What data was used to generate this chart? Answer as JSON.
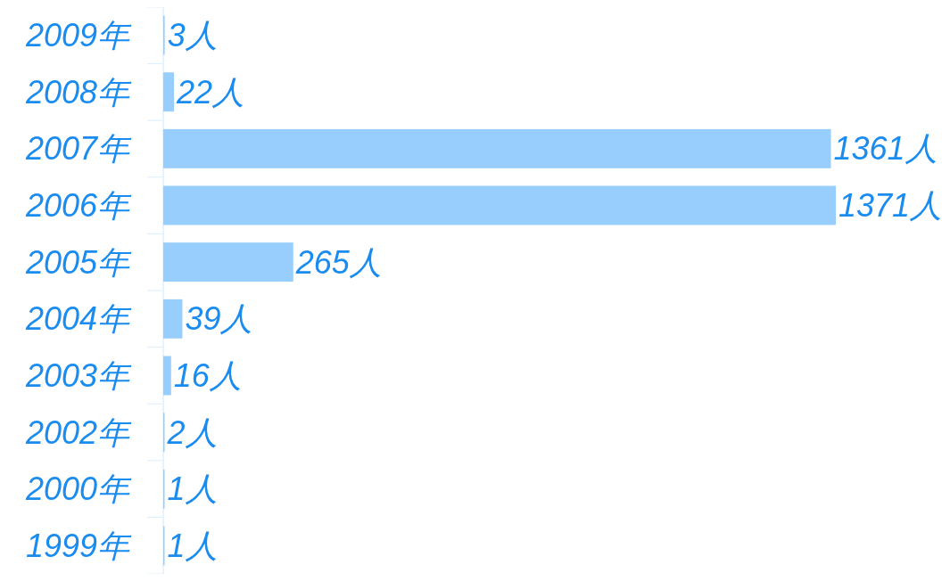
{
  "chart_data": {
    "type": "bar",
    "orientation": "horizontal",
    "categories": [
      "2009年",
      "2008年",
      "2007年",
      "2006年",
      "2005年",
      "2004年",
      "2003年",
      "2002年",
      "2000年",
      "1999年"
    ],
    "values": [
      3,
      22,
      1361,
      1371,
      265,
      39,
      16,
      2,
      1,
      1
    ],
    "value_labels": [
      "3人",
      "22人",
      "1361人",
      "1371人",
      "265人",
      "39人",
      "16人",
      "2人",
      "1人",
      "1人"
    ],
    "color": "#97cefd"
  }
}
